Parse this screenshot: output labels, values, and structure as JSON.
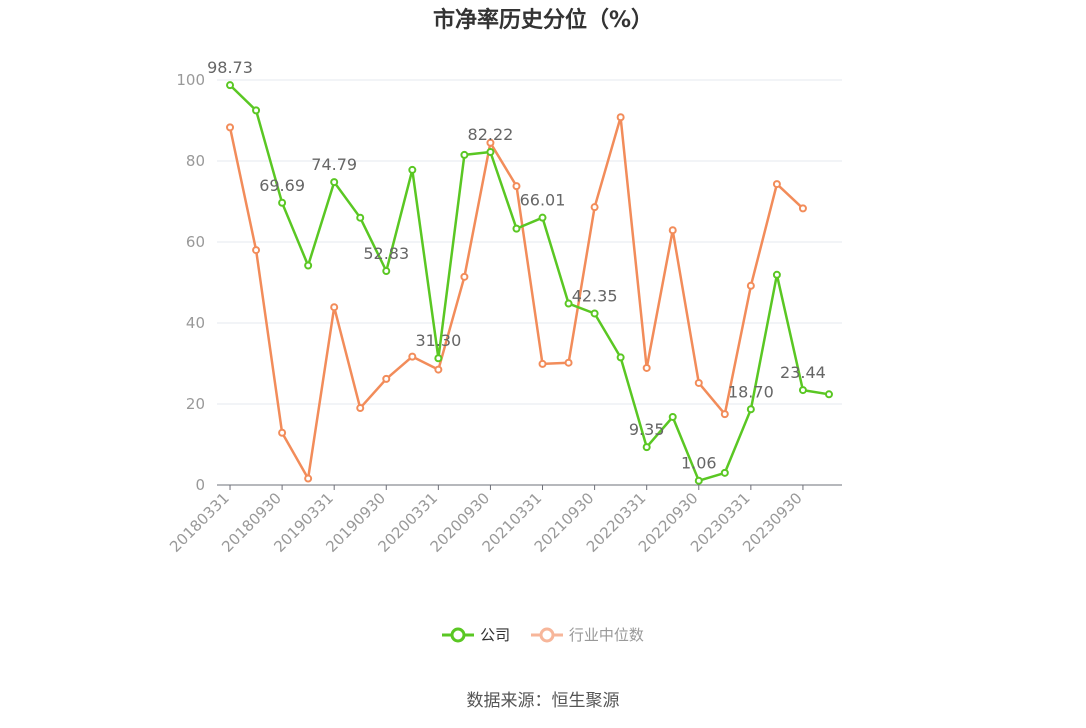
{
  "title": "市净率历史分位（%）",
  "source": "数据来源：恒生聚源",
  "colors": {
    "company": "#5ac723",
    "industry": "#f28c5a",
    "grid": "#e6e8ef",
    "axis": "#999999",
    "label": "#666666"
  },
  "legend": [
    {
      "name": "公司",
      "color": "#5ac723"
    },
    {
      "name": "行业中位数",
      "color": "#f7b69a"
    }
  ],
  "chart_data": {
    "type": "line",
    "title": "市净率历史分位（%）",
    "categories": [
      "20180331",
      "20180630",
      "20180930",
      "20181231",
      "20190331",
      "20190630",
      "20190930",
      "20191231",
      "20200331",
      "20200630",
      "20200930",
      "20201231",
      "20210331",
      "20210630",
      "20210930",
      "20211231",
      "20220331",
      "20220630",
      "20220930",
      "20221231",
      "20230331",
      "20230630",
      "20230930",
      "20231231"
    ],
    "x_tick_labels": [
      "20180331",
      "20180930",
      "20190331",
      "20190930",
      "20200331",
      "20200930",
      "20210331",
      "20210930",
      "20220331",
      "20220930",
      "20230331",
      "20230930"
    ],
    "ylim": [
      0,
      100
    ],
    "y_ticks": [
      0,
      20,
      40,
      60,
      80,
      100
    ],
    "grid": true,
    "legend_position": "bottom",
    "series": [
      {
        "name": "公司",
        "color": "#5ac723",
        "values": [
          98.73,
          92.5,
          69.69,
          54.2,
          74.79,
          66.0,
          52.83,
          77.8,
          31.3,
          81.5,
          82.22,
          63.3,
          66.01,
          44.8,
          42.35,
          31.5,
          9.35,
          16.8,
          1.06,
          3.0,
          18.7,
          51.9,
          23.44,
          22.4
        ],
        "labels": [
          "98.73",
          "",
          "69.69",
          "",
          "74.79",
          "",
          "52.83",
          "",
          "31.30",
          "",
          "82.22",
          "",
          "66.01",
          "",
          "42.35",
          "",
          "9.35",
          "",
          "1.06",
          "",
          "18.70",
          "",
          "23.44",
          ""
        ]
      },
      {
        "name": "行业中位数",
        "color": "#f28c5a",
        "values": [
          88.3,
          58.0,
          12.9,
          1.6,
          43.9,
          19.0,
          26.2,
          31.7,
          28.5,
          51.4,
          84.5,
          73.8,
          29.9,
          30.2,
          68.6,
          90.8,
          28.9,
          62.9,
          25.2,
          17.5,
          49.2,
          74.3,
          68.3,
          null
        ]
      }
    ]
  }
}
